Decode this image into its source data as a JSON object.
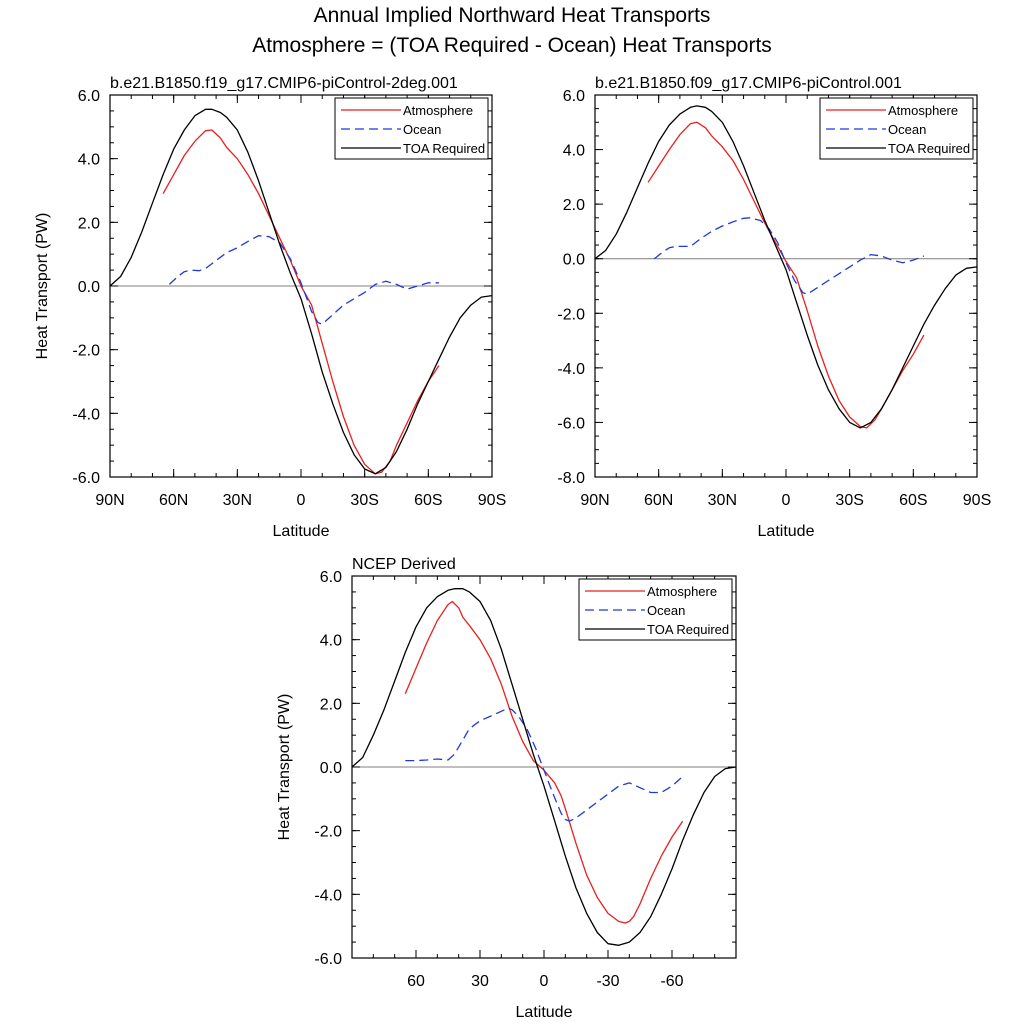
{
  "figure": {
    "title_line1": "Annual Implied Northward Heat Transports",
    "title_line2": "Atmosphere = (TOA Required - Ocean) Heat Transports"
  },
  "chart_data": [
    {
      "type": "line",
      "title": "b.e21.B1850.f19_g17.CMIP6-piControl-2deg.001",
      "xlabel": "Latitude",
      "ylabel": "Heat Transport (PW)",
      "xlim": [
        90,
        -90
      ],
      "ylim": [
        -6.0,
        6.0
      ],
      "yticks": [
        6,
        4,
        2,
        0,
        -2,
        -4,
        -6
      ],
      "ytick_labels": [
        "6.0",
        "4.0",
        "2.0",
        "0.0",
        "-2.0",
        "-4.0",
        "-6.0"
      ],
      "xticks": [
        90,
        60,
        30,
        0,
        -30,
        -60,
        -90
      ],
      "xtick_labels": [
        "90N",
        "60N",
        "30N",
        "0",
        "30S",
        "60S",
        "90S"
      ],
      "legend": [
        "Atmosphere",
        "Ocean",
        "TOA Required"
      ],
      "legend_position": "top-right",
      "series": [
        {
          "name": "Atmosphere",
          "color": "#e8201e",
          "dash": "solid",
          "x": [
            65,
            60,
            55,
            50,
            45,
            42,
            38,
            35,
            30,
            25,
            20,
            15,
            10,
            5,
            0,
            -5,
            -10,
            -15,
            -20,
            -25,
            -30,
            -35,
            -38,
            -42,
            -45,
            -50,
            -55,
            -60,
            -65
          ],
          "y": [
            2.9,
            3.5,
            4.1,
            4.55,
            4.88,
            4.9,
            4.65,
            4.35,
            4.0,
            3.5,
            2.9,
            2.2,
            1.5,
            0.8,
            0.0,
            -0.6,
            -1.8,
            -3.0,
            -4.1,
            -5.0,
            -5.6,
            -5.9,
            -5.85,
            -5.5,
            -5.0,
            -4.3,
            -3.6,
            -3.0,
            -2.5
          ]
        },
        {
          "name": "Ocean",
          "color": "#1f3bd6",
          "dash": "dashed",
          "x": [
            62,
            58,
            55,
            52,
            48,
            45,
            40,
            35,
            30,
            25,
            20,
            15,
            10,
            5,
            0,
            -5,
            -8,
            -10,
            -15,
            -20,
            -25,
            -30,
            -35,
            -40,
            -45,
            -50,
            -55,
            -60,
            -65
          ],
          "y": [
            0.05,
            0.3,
            0.45,
            0.5,
            0.48,
            0.55,
            0.8,
            1.05,
            1.2,
            1.4,
            1.58,
            1.55,
            1.35,
            0.85,
            0.1,
            -0.8,
            -1.15,
            -1.2,
            -0.9,
            -0.6,
            -0.4,
            -0.2,
            0.05,
            0.15,
            0.05,
            -0.1,
            0.0,
            0.1,
            0.1
          ]
        },
        {
          "name": "TOA Required",
          "color": "#000000",
          "dash": "solid",
          "x": [
            90,
            85,
            80,
            75,
            70,
            65,
            60,
            55,
            50,
            45,
            42,
            38,
            35,
            30,
            25,
            20,
            15,
            10,
            5,
            0,
            -5,
            -10,
            -15,
            -20,
            -25,
            -30,
            -35,
            -40,
            -45,
            -50,
            -55,
            -60,
            -65,
            -70,
            -75,
            -80,
            -85,
            -90
          ],
          "y": [
            0.0,
            0.3,
            0.9,
            1.7,
            2.6,
            3.5,
            4.3,
            4.9,
            5.35,
            5.55,
            5.55,
            5.45,
            5.3,
            4.9,
            4.2,
            3.3,
            2.3,
            1.3,
            0.4,
            -0.4,
            -1.5,
            -2.7,
            -3.7,
            -4.6,
            -5.3,
            -5.75,
            -5.9,
            -5.7,
            -5.2,
            -4.5,
            -3.7,
            -3.0,
            -2.3,
            -1.6,
            -1.0,
            -0.6,
            -0.35,
            -0.3
          ]
        }
      ]
    },
    {
      "type": "line",
      "title": "b.e21.B1850.f09_g17.CMIP6-piControl.001",
      "xlabel": "Latitude",
      "ylabel": "",
      "xlim": [
        90,
        -90
      ],
      "ylim": [
        -8.0,
        6.0
      ],
      "yticks": [
        6,
        4,
        2,
        0,
        -2,
        -4,
        -6,
        -8
      ],
      "ytick_labels": [
        "6.0",
        "4.0",
        "2.0",
        "0.0",
        "-2.0",
        "-4.0",
        "-6.0",
        "-8.0"
      ],
      "xticks": [
        90,
        60,
        30,
        0,
        -30,
        -60,
        -90
      ],
      "xtick_labels": [
        "90N",
        "60N",
        "30N",
        "0",
        "30S",
        "60S",
        "90S"
      ],
      "legend": [
        "Atmosphere",
        "Ocean",
        "TOA Required"
      ],
      "legend_position": "top-right",
      "series": [
        {
          "name": "Atmosphere",
          "color": "#e8201e",
          "dash": "solid",
          "x": [
            65,
            60,
            55,
            50,
            45,
            42,
            38,
            35,
            30,
            25,
            20,
            15,
            10,
            5,
            0,
            -5,
            -10,
            -15,
            -20,
            -25,
            -30,
            -35,
            -38,
            -42,
            -45,
            -50,
            -55,
            -60,
            -65
          ],
          "y": [
            2.8,
            3.4,
            4.0,
            4.55,
            4.95,
            5.0,
            4.8,
            4.5,
            4.1,
            3.6,
            2.9,
            2.1,
            1.3,
            0.6,
            -0.1,
            -0.7,
            -1.9,
            -3.2,
            -4.3,
            -5.2,
            -5.8,
            -6.15,
            -6.2,
            -5.9,
            -5.5,
            -4.8,
            -4.1,
            -3.5,
            -2.8
          ]
        },
        {
          "name": "Ocean",
          "color": "#1f3bd6",
          "dash": "dashed",
          "x": [
            62,
            58,
            55,
            52,
            48,
            45,
            40,
            35,
            30,
            25,
            20,
            17,
            12,
            8,
            4,
            0,
            -4,
            -8,
            -10,
            -15,
            -20,
            -25,
            -30,
            -35,
            -40,
            -45,
            -50,
            -55,
            -60,
            -65
          ],
          "y": [
            0.0,
            0.25,
            0.4,
            0.45,
            0.45,
            0.45,
            0.75,
            1.0,
            1.2,
            1.35,
            1.48,
            1.5,
            1.4,
            1.1,
            0.6,
            -0.15,
            -0.8,
            -1.25,
            -1.3,
            -1.05,
            -0.8,
            -0.55,
            -0.3,
            -0.05,
            0.15,
            0.1,
            -0.05,
            -0.15,
            -0.05,
            0.1
          ]
        },
        {
          "name": "TOA Required",
          "color": "#000000",
          "dash": "solid",
          "x": [
            90,
            85,
            80,
            75,
            70,
            65,
            60,
            55,
            50,
            45,
            42,
            38,
            35,
            30,
            25,
            20,
            15,
            10,
            5,
            0,
            -5,
            -10,
            -15,
            -20,
            -25,
            -30,
            -35,
            -40,
            -45,
            -50,
            -55,
            -60,
            -65,
            -70,
            -75,
            -80,
            -85,
            -90
          ],
          "y": [
            0.0,
            0.3,
            0.9,
            1.7,
            2.6,
            3.5,
            4.3,
            4.9,
            5.3,
            5.55,
            5.6,
            5.55,
            5.4,
            5.0,
            4.3,
            3.4,
            2.4,
            1.4,
            0.5,
            -0.4,
            -1.6,
            -2.8,
            -3.9,
            -4.8,
            -5.5,
            -6.0,
            -6.2,
            -6.0,
            -5.5,
            -4.8,
            -4.0,
            -3.2,
            -2.4,
            -1.7,
            -1.1,
            -0.6,
            -0.35,
            -0.3
          ]
        }
      ]
    },
    {
      "type": "line",
      "title": "NCEP Derived",
      "xlabel": "Latitude",
      "ylabel": "Heat Transport (PW)",
      "xlim": [
        90,
        -90
      ],
      "ylim": [
        -6.0,
        6.0
      ],
      "yticks": [
        6,
        4,
        2,
        0,
        -2,
        -4,
        -6
      ],
      "ytick_labels": [
        "6.0",
        "4.0",
        "2.0",
        "0.0",
        "-2.0",
        "-4.0",
        "-6.0"
      ],
      "xticks": [
        60,
        30,
        0,
        -30,
        -60
      ],
      "xtick_labels": [
        "60",
        "30",
        "0",
        "-30",
        "-60"
      ],
      "legend": [
        "Atmosphere",
        "Ocean",
        "TOA Required"
      ],
      "legend_position": "top-right",
      "series": [
        {
          "name": "Atmosphere",
          "color": "#e8201e",
          "dash": "solid",
          "x": [
            65,
            60,
            55,
            50,
            45,
            43,
            40,
            38,
            35,
            30,
            25,
            20,
            15,
            10,
            5,
            0,
            -5,
            -8,
            -10,
            -15,
            -20,
            -25,
            -30,
            -35,
            -38,
            -40,
            -42,
            -45,
            -50,
            -55,
            -60,
            -65
          ],
          "y": [
            2.3,
            3.1,
            3.9,
            4.6,
            5.1,
            5.2,
            5.0,
            4.7,
            4.45,
            4.0,
            3.4,
            2.6,
            1.6,
            0.8,
            0.2,
            -0.1,
            -0.5,
            -0.9,
            -1.3,
            -2.4,
            -3.4,
            -4.1,
            -4.6,
            -4.85,
            -4.9,
            -4.85,
            -4.7,
            -4.3,
            -3.5,
            -2.8,
            -2.2,
            -1.7
          ]
        },
        {
          "name": "Ocean",
          "color": "#1f3bd6",
          "dash": "dashed",
          "x": [
            65,
            60,
            55,
            50,
            45,
            42,
            38,
            35,
            30,
            25,
            20,
            17,
            15,
            12,
            8,
            4,
            0,
            -4,
            -8,
            -10,
            -12,
            -15,
            -20,
            -25,
            -30,
            -35,
            -40,
            -45,
            -50,
            -55,
            -60,
            -65
          ],
          "y": [
            0.2,
            0.2,
            0.22,
            0.25,
            0.22,
            0.4,
            0.85,
            1.2,
            1.45,
            1.6,
            1.75,
            1.85,
            1.8,
            1.6,
            1.2,
            0.6,
            -0.1,
            -0.8,
            -1.45,
            -1.65,
            -1.7,
            -1.6,
            -1.35,
            -1.1,
            -0.85,
            -0.6,
            -0.5,
            -0.65,
            -0.8,
            -0.8,
            -0.6,
            -0.3
          ]
        },
        {
          "name": "TOA Required",
          "color": "#000000",
          "dash": "solid",
          "x": [
            90,
            85,
            80,
            75,
            70,
            65,
            60,
            55,
            50,
            45,
            42,
            38,
            35,
            30,
            25,
            20,
            15,
            10,
            5,
            0,
            -5,
            -10,
            -15,
            -20,
            -25,
            -30,
            -35,
            -40,
            -45,
            -50,
            -55,
            -60,
            -65,
            -70,
            -75,
            -80,
            -85,
            -90
          ],
          "y": [
            0.0,
            0.3,
            1.0,
            1.8,
            2.7,
            3.6,
            4.4,
            5.0,
            5.35,
            5.55,
            5.6,
            5.6,
            5.5,
            5.2,
            4.6,
            3.7,
            2.6,
            1.5,
            0.4,
            -0.6,
            -1.7,
            -2.8,
            -3.8,
            -4.6,
            -5.2,
            -5.55,
            -5.6,
            -5.5,
            -5.2,
            -4.7,
            -4.0,
            -3.2,
            -2.3,
            -1.5,
            -0.8,
            -0.3,
            -0.05,
            0.0
          ]
        }
      ]
    }
  ]
}
